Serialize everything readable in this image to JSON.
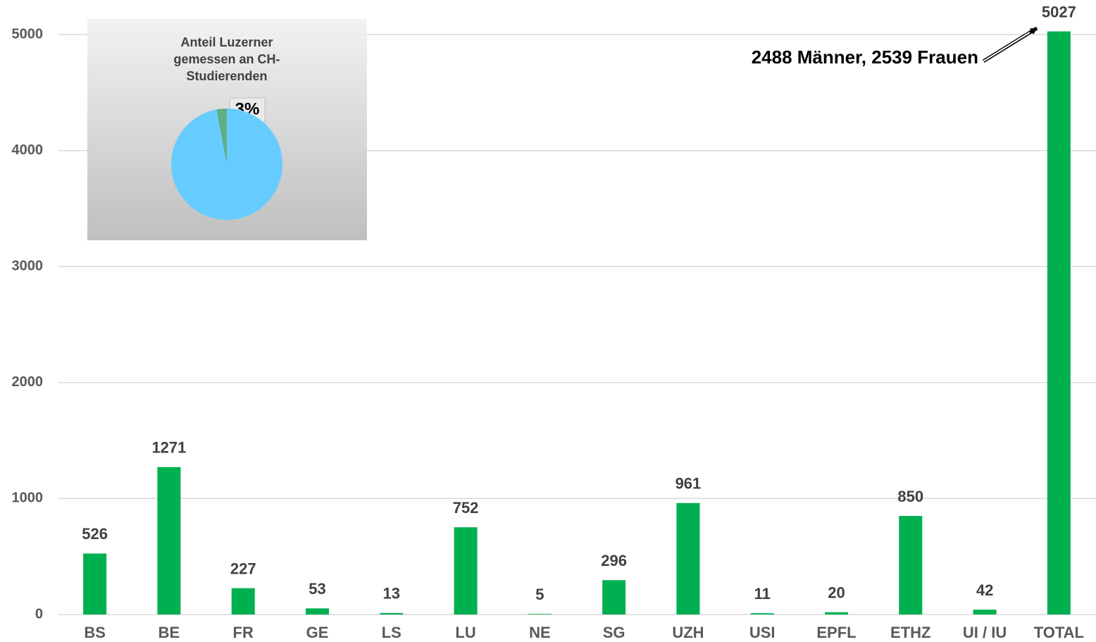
{
  "chart_data": [
    {
      "type": "bar",
      "categories": [
        "BS",
        "BE",
        "FR",
        "GE",
        "LS",
        "LU",
        "NE",
        "SG",
        "UZH",
        "USI",
        "EPFL",
        "ETHZ",
        "UI / IU",
        "TOTAL"
      ],
      "values": [
        526,
        1271,
        227,
        53,
        13,
        752,
        5,
        296,
        961,
        11,
        20,
        850,
        42,
        5027
      ],
      "color": "#00b050",
      "ylim": [
        0,
        5000
      ],
      "yticks": [
        0,
        1000,
        2000,
        3000,
        4000,
        5000
      ],
      "grid": true,
      "annotation": "2488 Männer, 2539 Frauen"
    },
    {
      "type": "pie",
      "title": [
        "Anteil Luzerner",
        "gemessen an CH-",
        "Studierenden"
      ],
      "values": [
        3,
        97
      ],
      "value_labels": [
        "3%",
        null
      ],
      "colors": [
        "#5fae84",
        "#66ccff"
      ]
    }
  ]
}
